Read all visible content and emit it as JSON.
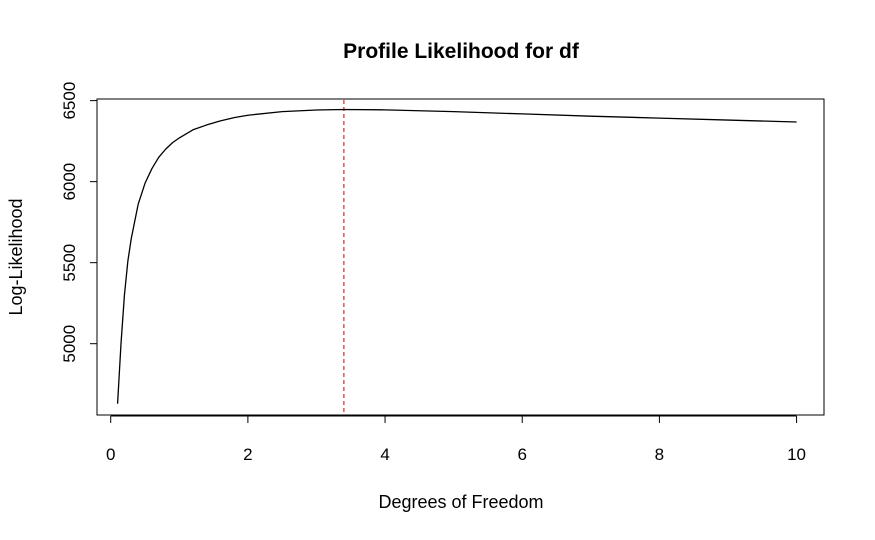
{
  "chart_data": {
    "type": "line",
    "title": "Profile Likelihood for df",
    "xlabel": "Degrees of Freedom",
    "ylabel": "Log-Likelihood",
    "xlim": [
      -0.2,
      10.4
    ],
    "ylim": [
      4560,
      6510
    ],
    "xticks": [
      0,
      2,
      4,
      6,
      8,
      10
    ],
    "yticks": [
      5000,
      5500,
      6000,
      6500
    ],
    "grid": false,
    "box": true,
    "series": [
      {
        "color": "#000000",
        "x": [
          0.1,
          0.15,
          0.2,
          0.25,
          0.3,
          0.4,
          0.5,
          0.6,
          0.7,
          0.8,
          0.9,
          1.0,
          1.2,
          1.4,
          1.6,
          1.8,
          2.0,
          2.5,
          3.0,
          3.4,
          4.0,
          5.0,
          6.0,
          7.0,
          8.0,
          9.0,
          10.0
        ],
        "y": [
          4630,
          5000,
          5300,
          5510,
          5650,
          5860,
          5990,
          6080,
          6150,
          6200,
          6240,
          6270,
          6320,
          6350,
          6375,
          6395,
          6410,
          6432,
          6442,
          6445,
          6443,
          6432,
          6418,
          6404,
          6392,
          6380,
          6368
        ]
      }
    ],
    "reference_lines": [
      {
        "orientation": "vertical",
        "x": 3.4,
        "color": "#cc0000",
        "style": "dashed"
      }
    ]
  }
}
